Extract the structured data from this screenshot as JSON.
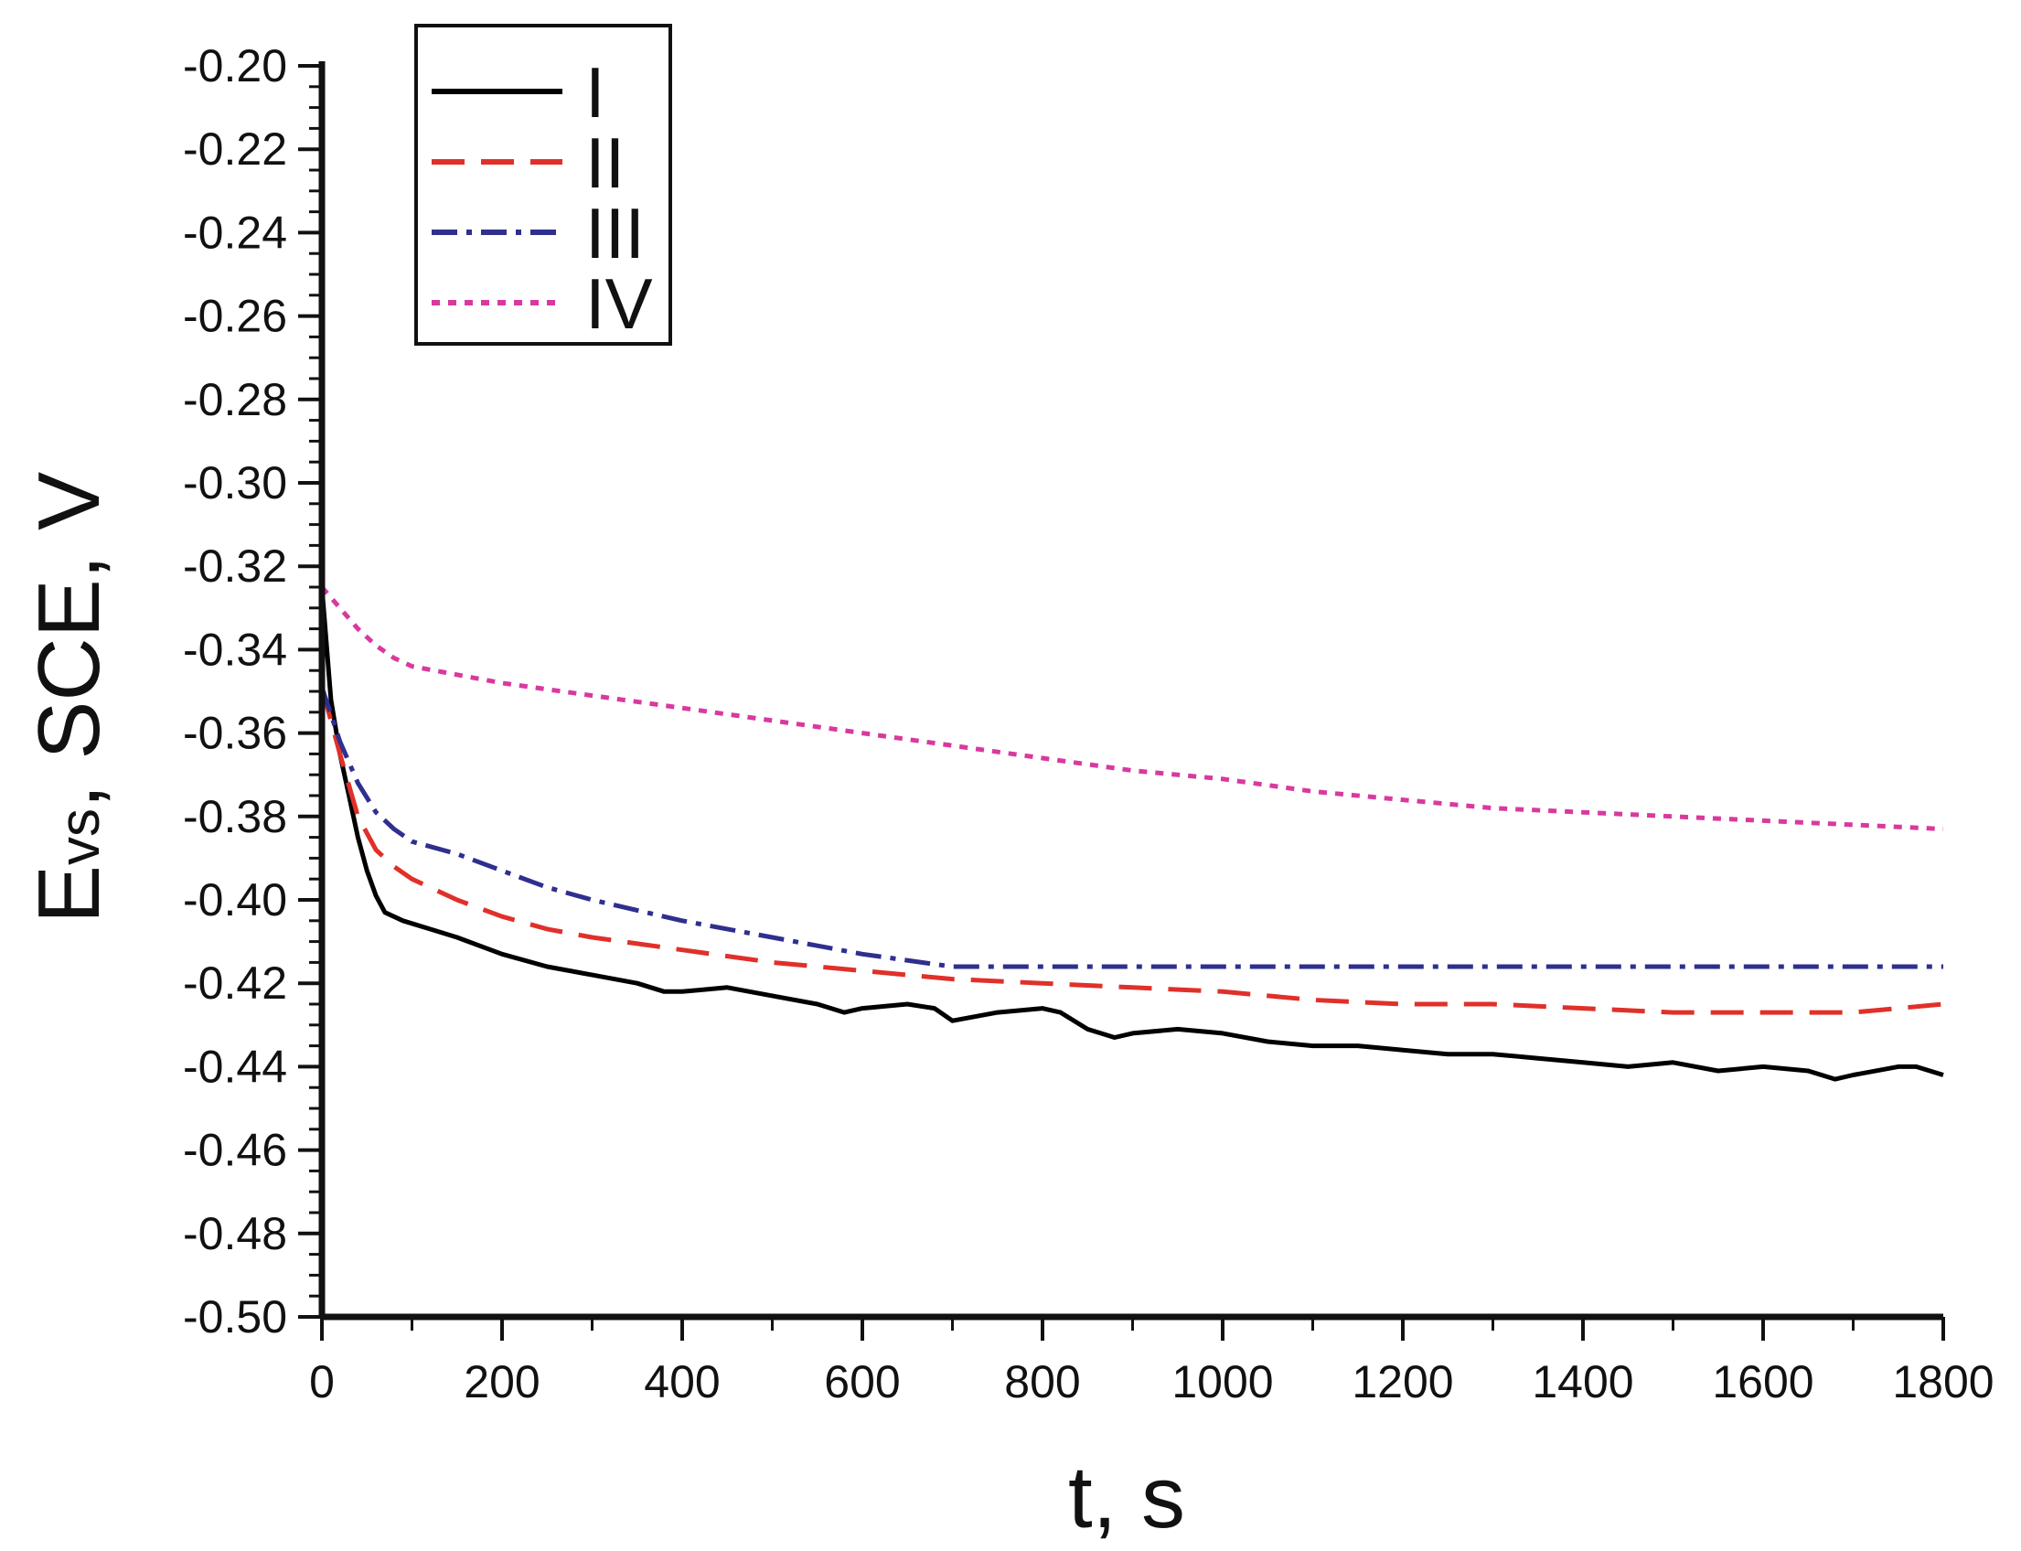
{
  "chart_data": {
    "type": "line",
    "xlabel": "t, s",
    "ylabel": {
      "main": "E",
      "sub": "vs",
      "rest": ", SCE, V"
    },
    "xlim": [
      0,
      1800
    ],
    "ylim": [
      -0.5,
      -0.2
    ],
    "xticks": [
      {
        "v": 0,
        "label": "0"
      },
      {
        "v": 200,
        "label": "200"
      },
      {
        "v": 400,
        "label": "400"
      },
      {
        "v": 600,
        "label": "600"
      },
      {
        "v": 800,
        "label": "800"
      },
      {
        "v": 1000,
        "label": "1000"
      },
      {
        "v": 1200,
        "label": "1200"
      },
      {
        "v": 1400,
        "label": "1400"
      },
      {
        "v": 1600,
        "label": "1600"
      },
      {
        "v": 1800,
        "label": "1800"
      }
    ],
    "yticks": [
      {
        "v": -0.2,
        "label": "-0.20"
      },
      {
        "v": -0.22,
        "label": "-0.22"
      },
      {
        "v": -0.24,
        "label": "-0.24"
      },
      {
        "v": -0.26,
        "label": "-0.26"
      },
      {
        "v": -0.28,
        "label": "-0.28"
      },
      {
        "v": -0.3,
        "label": "-0.30"
      },
      {
        "v": -0.32,
        "label": "-0.32"
      },
      {
        "v": -0.34,
        "label": "-0.34"
      },
      {
        "v": -0.36,
        "label": "-0.36"
      },
      {
        "v": -0.38,
        "label": "-0.38"
      },
      {
        "v": -0.4,
        "label": "-0.40"
      },
      {
        "v": -0.42,
        "label": "-0.42"
      },
      {
        "v": -0.44,
        "label": "-0.44"
      },
      {
        "v": -0.46,
        "label": "-0.46"
      },
      {
        "v": -0.48,
        "label": "-0.48"
      },
      {
        "v": -0.5,
        "label": "-0.50"
      }
    ],
    "grid": false,
    "legend": "top-left",
    "series": [
      {
        "name": "I",
        "color": "#000000",
        "dash": "solid",
        "x": [
          0,
          10,
          20,
          30,
          40,
          50,
          60,
          70,
          90,
          120,
          150,
          200,
          250,
          300,
          350,
          380,
          400,
          450,
          500,
          550,
          580,
          600,
          650,
          680,
          700,
          750,
          800,
          820,
          850,
          880,
          900,
          950,
          1000,
          1050,
          1100,
          1150,
          1200,
          1250,
          1300,
          1350,
          1400,
          1450,
          1500,
          1550,
          1600,
          1650,
          1680,
          1700,
          1750,
          1770,
          1800
        ],
        "y": [
          -0.325,
          -0.352,
          -0.365,
          -0.375,
          -0.385,
          -0.393,
          -0.399,
          -0.403,
          -0.405,
          -0.407,
          -0.409,
          -0.413,
          -0.416,
          -0.418,
          -0.42,
          -0.422,
          -0.422,
          -0.421,
          -0.423,
          -0.425,
          -0.427,
          -0.426,
          -0.425,
          -0.426,
          -0.429,
          -0.427,
          -0.426,
          -0.427,
          -0.431,
          -0.433,
          -0.432,
          -0.431,
          -0.432,
          -0.434,
          -0.435,
          -0.435,
          -0.436,
          -0.437,
          -0.437,
          -0.438,
          -0.439,
          -0.44,
          -0.439,
          -0.441,
          -0.44,
          -0.441,
          -0.443,
          -0.442,
          -0.44,
          -0.44,
          -0.442
        ]
      },
      {
        "name": "II",
        "color": "#e0302a",
        "dash": "long-dash",
        "x": [
          0,
          20,
          40,
          60,
          80,
          100,
          150,
          200,
          250,
          300,
          400,
          500,
          600,
          700,
          800,
          900,
          1000,
          1100,
          1200,
          1300,
          1400,
          1500,
          1600,
          1700,
          1800
        ],
        "y": [
          -0.349,
          -0.365,
          -0.38,
          -0.388,
          -0.392,
          -0.395,
          -0.4,
          -0.404,
          -0.407,
          -0.409,
          -0.412,
          -0.415,
          -0.417,
          -0.419,
          -0.42,
          -0.421,
          -0.422,
          -0.424,
          -0.425,
          -0.425,
          -0.426,
          -0.427,
          -0.427,
          -0.427,
          -0.425
        ]
      },
      {
        "name": "III",
        "color": "#2f2f8f",
        "dash": "dash-dot",
        "x": [
          0,
          20,
          40,
          60,
          80,
          100,
          150,
          200,
          250,
          300,
          400,
          500,
          600,
          700,
          720,
          800,
          1000,
          1200,
          1400,
          1600,
          1800
        ],
        "y": [
          -0.349,
          -0.362,
          -0.372,
          -0.379,
          -0.383,
          -0.386,
          -0.389,
          -0.393,
          -0.397,
          -0.4,
          -0.405,
          -0.409,
          -0.413,
          -0.416,
          -0.416,
          -0.416,
          -0.416,
          -0.416,
          -0.416,
          -0.416,
          -0.416
        ]
      },
      {
        "name": "IV",
        "color": "#d9399f",
        "dash": "dot",
        "x": [
          0,
          20,
          40,
          60,
          80,
          100,
          150,
          200,
          300,
          400,
          500,
          600,
          700,
          800,
          900,
          1000,
          1100,
          1200,
          1300,
          1400,
          1500,
          1600,
          1700,
          1800
        ],
        "y": [
          -0.325,
          -0.33,
          -0.335,
          -0.339,
          -0.342,
          -0.344,
          -0.346,
          -0.348,
          -0.351,
          -0.354,
          -0.357,
          -0.36,
          -0.363,
          -0.366,
          -0.369,
          -0.371,
          -0.374,
          -0.376,
          -0.378,
          -0.379,
          -0.38,
          -0.381,
          -0.382,
          -0.383
        ]
      }
    ]
  }
}
